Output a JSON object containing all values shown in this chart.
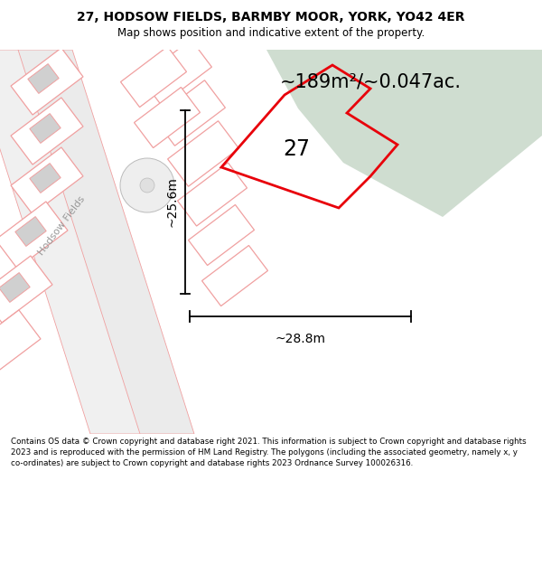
{
  "title_line1": "27, HODSOW FIELDS, BARMBY MOOR, YORK, YO42 4ER",
  "title_line2": "Map shows position and indicative extent of the property.",
  "area_text": "~189m²/~0.047ac.",
  "label_27": "27",
  "dim_width": "~28.8m",
  "dim_height": "~25.6m",
  "street_label": "Hodsow Fields",
  "footer_text": "Contains OS data © Crown copyright and database right 2021. This information is subject to Crown copyright and database rights 2023 and is reproduced with the permission of HM Land Registry. The polygons (including the associated geometry, namely x, y co-ordinates) are subject to Crown copyright and database rights 2023 Ordnance Survey 100026316.",
  "bg_color": "#ffffff",
  "map_bg": "#f5f5f5",
  "green_fill": "#cfddd0",
  "red_outline": "#e8000a",
  "pink_lines": "#f0a0a0",
  "plot_fill": "#e8e8e8",
  "road_fill": "#f0f0f0"
}
